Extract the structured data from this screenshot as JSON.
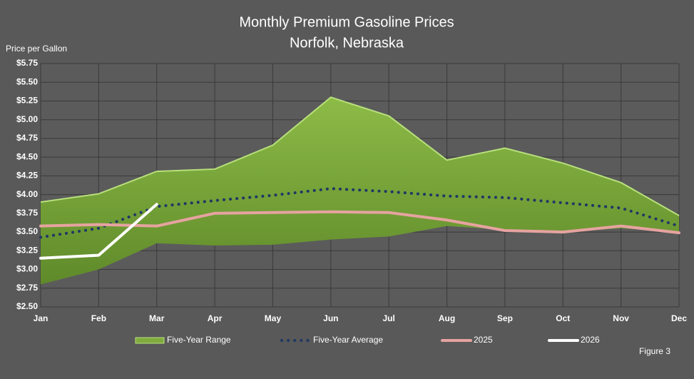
{
  "chart_data": {
    "type": "line",
    "title": "Monthly Premium Gasoline Prices",
    "subtitle": "Norfolk, Nebraska",
    "y_label": "Price per Gallon",
    "annotation": "Figure 3",
    "categories": [
      "Jan",
      "Feb",
      "Mar",
      "Apr",
      "May",
      "Jun",
      "Jul",
      "Aug",
      "Sep",
      "Oct",
      "Nov",
      "Dec"
    ],
    "ylim": [
      2.5,
      5.75
    ],
    "yticks": [
      {
        "value": 2.5,
        "label": "$2.50"
      },
      {
        "value": 2.75,
        "label": "$2.75"
      },
      {
        "value": 3,
        "label": "$3.00"
      },
      {
        "value": 3.25,
        "label": "$3.25"
      },
      {
        "value": 3.5,
        "label": "$3.50"
      },
      {
        "value": 3.75,
        "label": "$3.75"
      },
      {
        "value": 4,
        "label": "$4.00"
      },
      {
        "value": 4.25,
        "label": "$4.25"
      },
      {
        "value": 4.5,
        "label": "$4.50"
      },
      {
        "value": 4.75,
        "label": "$4.75"
      },
      {
        "value": 5,
        "label": "$5.00"
      },
      {
        "value": 5.25,
        "label": "$5.25"
      },
      {
        "value": 5.5,
        "label": "$5.50"
      },
      {
        "value": 5.75,
        "label": "$5.75"
      }
    ],
    "grid": true,
    "series": [
      {
        "name": "Five-Year Range",
        "color": "#7fab3e",
        "edge_color": "#b8e07c",
        "high": [
          3.9,
          4.01,
          4.31,
          4.34,
          4.66,
          5.3,
          5.05,
          4.46,
          4.62,
          4.42,
          4.16,
          3.72
        ],
        "low": [
          2.8,
          3.0,
          3.35,
          3.32,
          3.33,
          3.4,
          3.44,
          3.58,
          3.53,
          3.5,
          3.55,
          3.5
        ]
      },
      {
        "name": "Five-Year Average",
        "color": "#1f3864",
        "dash": "dotted",
        "values": [
          3.43,
          3.55,
          3.84,
          3.92,
          3.99,
          4.08,
          4.04,
          3.98,
          3.96,
          3.89,
          3.82,
          3.58
        ]
      },
      {
        "name": "2025",
        "color": "#e6a3a0",
        "values": [
          3.58,
          3.6,
          3.58,
          3.75,
          3.76,
          3.77,
          3.76,
          3.66,
          3.52,
          3.5,
          3.58,
          3.49
        ]
      },
      {
        "name": "2026",
        "color": "#ffffff",
        "values": [
          3.15,
          3.19,
          3.87,
          null,
          null,
          null,
          null,
          null,
          null,
          null,
          null,
          null
        ]
      }
    ]
  }
}
